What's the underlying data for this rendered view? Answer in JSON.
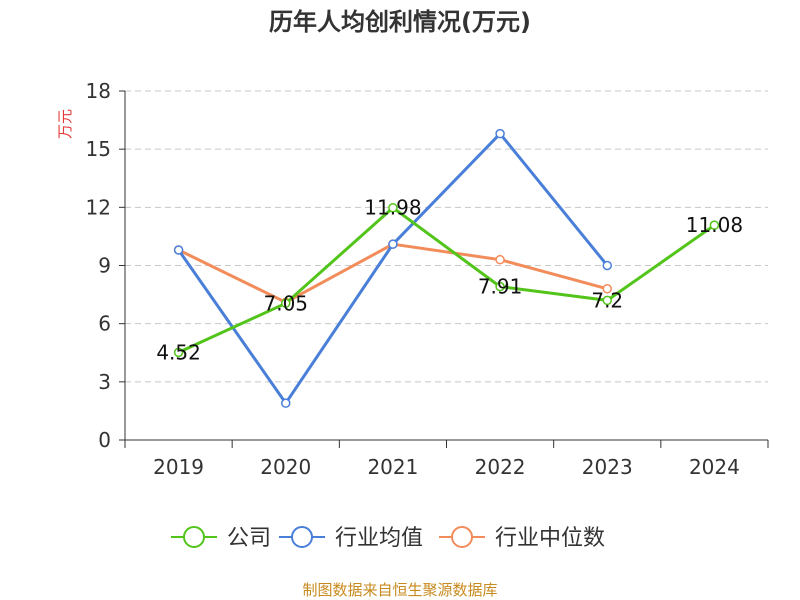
{
  "chart_data": {
    "type": "line",
    "title": "历年人均创利情况(万元)",
    "ylabel": "万元",
    "xlabel": "",
    "categories": [
      "2019",
      "2020",
      "2021",
      "2022",
      "2023",
      "2024"
    ],
    "ylim": [
      0,
      18
    ],
    "yticks": [
      "0",
      "3",
      "6",
      "9",
      "12",
      "15",
      "18"
    ],
    "grid": true,
    "legend_position": "bottom",
    "series": [
      {
        "name": "公司",
        "color": "#52c41a",
        "values": [
          4.52,
          7.05,
          11.98,
          7.91,
          7.2,
          11.08
        ],
        "labels": [
          "4.52",
          "7.05",
          "11.98",
          "7.91",
          "7.2",
          "11.08"
        ]
      },
      {
        "name": "行业均值",
        "color": "#4a7fd9",
        "values": [
          9.8,
          1.9,
          10.1,
          15.8,
          9.0,
          null
        ],
        "labels": []
      },
      {
        "name": "行业中位数",
        "color": "#f28c5a",
        "values": [
          9.8,
          7.1,
          10.1,
          9.3,
          7.8,
          null
        ],
        "labels": []
      }
    ]
  },
  "footer": {
    "source": "制图数据来自恒生聚源数据库"
  }
}
